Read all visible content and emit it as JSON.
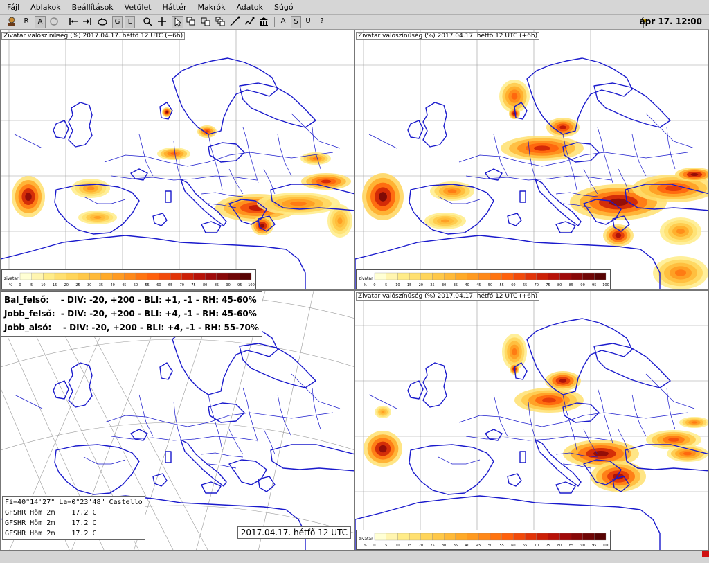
{
  "menu": [
    "Fájl",
    "Ablakok",
    "Beállítások",
    "Vetület",
    "Háttér",
    "Makrók",
    "Adatok",
    "Súgó"
  ],
  "toolbar": {
    "r_label": "R",
    "a_label": "A",
    "g_label": "G",
    "l_label": "L",
    "a2_label": "A",
    "s_label": "S",
    "u_label": "U",
    "help_label": "?",
    "datetime": "ápr 17. 12:00"
  },
  "panels": {
    "top_left_title": "Zivatar valószínűség (%) 2017.04.17. hétfő 12 UTC (+6h)",
    "top_right_title": "Zivatar valószínűség (%) 2017.04.17. hétfő 12 UTC (+6h)",
    "bottom_right_title": "Zivatar valószínűség (%) 2017.04.17. hétfő 12 UTC (+6h)"
  },
  "legend": {
    "name": "zivatar",
    "unit": "%",
    "ticks": [
      "0",
      "5",
      "10",
      "15",
      "20",
      "25",
      "30",
      "35",
      "40",
      "45",
      "50",
      "55",
      "60",
      "65",
      "70",
      "75",
      "80",
      "85",
      "90",
      "95",
      "100"
    ],
    "colors": [
      "#ffffd4",
      "#fff5b0",
      "#ffec88",
      "#ffe070",
      "#ffd55a",
      "#ffc848",
      "#ffba38",
      "#ffaa28",
      "#ff9a20",
      "#ff8818",
      "#ff7410",
      "#ff600c",
      "#f24a0a",
      "#e23408",
      "#cc2006",
      "#b81208",
      "#a00a0a",
      "#880808",
      "#700606",
      "#580404"
    ]
  },
  "info": {
    "rows": [
      {
        "name": "Bal_felső:",
        "text": "- DIV: -20, +200 - BLI: +1, -1 - RH: 45-60%"
      },
      {
        "name": "Jobb_felső:",
        "text": "- DIV: -20, +200 - BLI: +4, -1 - RH: 45-60%"
      },
      {
        "name": "Jobb_alsó:",
        "text": "- DIV: -20, +200 - BLI: +4, -1 - RH: 55-70%"
      }
    ]
  },
  "coords": {
    "line1": "Fi=40°14'27\" La=0°23'48\" Castello",
    "line2": "GFSHR Hőm 2m    17.2 C",
    "line3": "GFSHR Hőm 2m    17.2 C",
    "line4": "GFSHR Hőm 2m    17.2 C"
  },
  "date_stamp": "2017.04.17. hétfő 12 UTC",
  "colors": {
    "coast": "#1a1acc",
    "grid": "#9a9a9a",
    "accent": "#d01010"
  }
}
